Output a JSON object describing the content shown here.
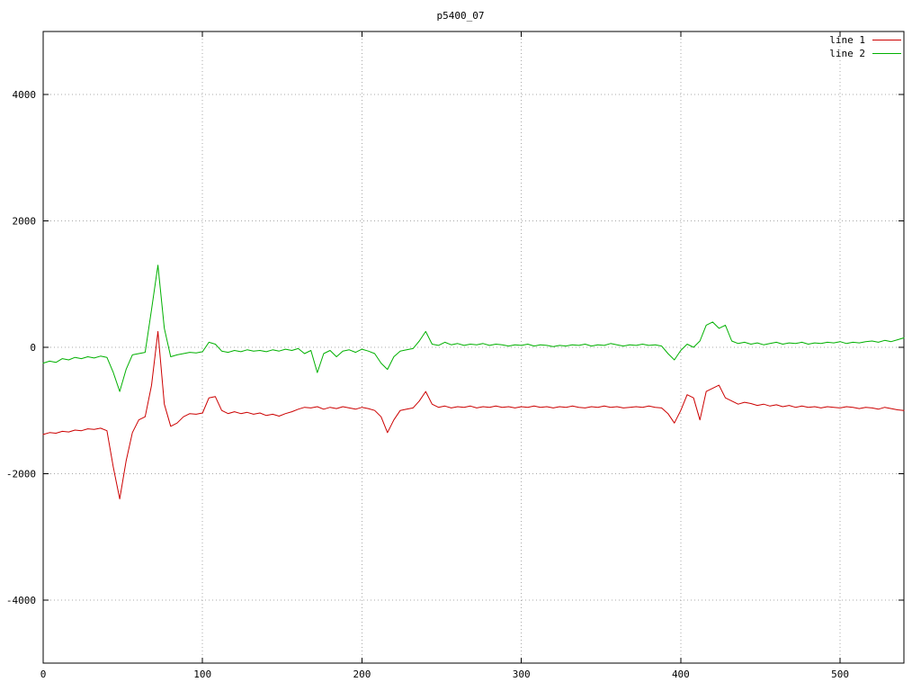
{
  "chart_data": {
    "type": "line",
    "title": "p5400_07",
    "xlabel": "",
    "ylabel": "",
    "xlim": [
      0,
      540
    ],
    "ylim": [
      -5000,
      5000
    ],
    "xticks": [
      0,
      100,
      200,
      300,
      400,
      500
    ],
    "yticks": [
      -4000,
      -2000,
      0,
      2000,
      4000
    ],
    "grid": true,
    "legend_position": "top-right",
    "x": [
      0,
      4,
      8,
      12,
      16,
      20,
      24,
      28,
      32,
      36,
      40,
      44,
      48,
      52,
      56,
      60,
      64,
      68,
      72,
      76,
      80,
      84,
      88,
      92,
      96,
      100,
      104,
      108,
      112,
      116,
      120,
      124,
      128,
      132,
      136,
      140,
      144,
      148,
      152,
      156,
      160,
      164,
      168,
      172,
      176,
      180,
      184,
      188,
      192,
      196,
      200,
      204,
      208,
      212,
      216,
      220,
      224,
      228,
      232,
      236,
      240,
      244,
      248,
      252,
      256,
      260,
      264,
      268,
      272,
      276,
      280,
      284,
      288,
      292,
      296,
      300,
      304,
      308,
      312,
      316,
      320,
      324,
      328,
      332,
      336,
      340,
      344,
      348,
      352,
      356,
      360,
      364,
      368,
      372,
      376,
      380,
      384,
      388,
      392,
      396,
      400,
      404,
      408,
      412,
      416,
      420,
      424,
      428,
      432,
      436,
      440,
      444,
      448,
      452,
      456,
      460,
      464,
      468,
      472,
      476,
      480,
      484,
      488,
      492,
      496,
      500,
      504,
      508,
      512,
      516,
      520,
      524,
      528,
      532,
      536,
      540
    ],
    "series": [
      {
        "name": "line 1",
        "color": "#cc0000",
        "values": [
          -1380,
          -1350,
          -1360,
          -1330,
          -1340,
          -1310,
          -1320,
          -1290,
          -1300,
          -1280,
          -1320,
          -1900,
          -2400,
          -1800,
          -1350,
          -1150,
          -1100,
          -600,
          250,
          -900,
          -1250,
          -1200,
          -1100,
          -1050,
          -1060,
          -1040,
          -800,
          -780,
          -1000,
          -1050,
          -1020,
          -1050,
          -1030,
          -1060,
          -1040,
          -1080,
          -1060,
          -1090,
          -1050,
          -1020,
          -980,
          -950,
          -960,
          -940,
          -980,
          -950,
          -970,
          -940,
          -960,
          -980,
          -950,
          -970,
          -1000,
          -1100,
          -1350,
          -1150,
          -1000,
          -980,
          -960,
          -850,
          -700,
          -900,
          -950,
          -930,
          -960,
          -940,
          -950,
          -930,
          -960,
          -940,
          -950,
          -930,
          -950,
          -940,
          -960,
          -940,
          -950,
          -930,
          -950,
          -940,
          -960,
          -940,
          -950,
          -930,
          -950,
          -960,
          -940,
          -950,
          -930,
          -950,
          -940,
          -960,
          -950,
          -940,
          -950,
          -930,
          -950,
          -960,
          -1050,
          -1200,
          -1000,
          -750,
          -800,
          -1150,
          -700,
          -650,
          -600,
          -800,
          -850,
          -900,
          -870,
          -890,
          -920,
          -900,
          -930,
          -910,
          -940,
          -920,
          -950,
          -930,
          -950,
          -940,
          -960,
          -940,
          -950,
          -960,
          -940,
          -950,
          -970,
          -950,
          -960,
          -980,
          -950,
          -970,
          -990,
          -1000
        ]
      },
      {
        "name": "line 2",
        "color": "#00b000",
        "values": [
          -250,
          -220,
          -240,
          -180,
          -200,
          -160,
          -180,
          -150,
          -170,
          -140,
          -160,
          -400,
          -700,
          -350,
          -120,
          -100,
          -80,
          600,
          1300,
          300,
          -150,
          -120,
          -100,
          -80,
          -90,
          -70,
          80,
          50,
          -60,
          -80,
          -50,
          -70,
          -40,
          -60,
          -50,
          -70,
          -40,
          -60,
          -30,
          -50,
          -20,
          -100,
          -50,
          -400,
          -100,
          -50,
          -150,
          -60,
          -40,
          -80,
          -30,
          -60,
          -100,
          -250,
          -350,
          -150,
          -60,
          -40,
          -20,
          100,
          250,
          50,
          30,
          80,
          40,
          60,
          30,
          50,
          40,
          60,
          30,
          50,
          40,
          20,
          40,
          30,
          50,
          20,
          40,
          30,
          10,
          30,
          20,
          40,
          30,
          50,
          20,
          40,
          30,
          60,
          40,
          20,
          40,
          30,
          50,
          30,
          40,
          20,
          -100,
          -200,
          -50,
          50,
          0,
          100,
          350,
          400,
          300,
          350,
          100,
          60,
          80,
          50,
          70,
          40,
          60,
          80,
          50,
          70,
          60,
          80,
          50,
          70,
          60,
          80,
          70,
          90,
          60,
          80,
          70,
          90,
          100,
          80,
          110,
          90,
          120,
          150
        ]
      }
    ]
  }
}
